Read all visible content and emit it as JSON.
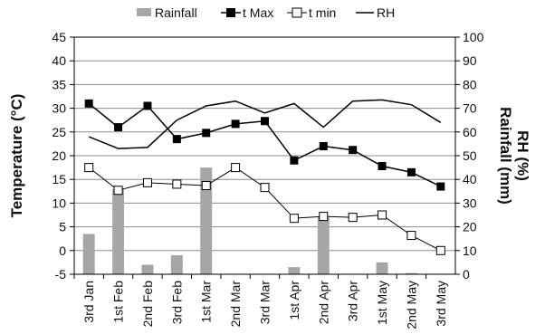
{
  "chart_data": {
    "type": "bar",
    "categories": [
      "3rd Jan",
      "1st Feb",
      "2nd Feb",
      "3rd Feb",
      "1st Mar",
      "2nd Mar",
      "3rd Mar",
      "1st Apr",
      "2nd Apr",
      "3rd Apr",
      "1st May",
      "2nd May",
      "3rd May"
    ],
    "ylabel_left": "Temperature (°C)",
    "ylabel_right_line1": "RH (%)",
    "ylabel_right_line2": "Rainfall (mm)",
    "ylim_left": [
      -5,
      45
    ],
    "ylim_right": [
      0,
      100
    ],
    "yticks_left": [
      "-5",
      "0",
      "5",
      "10",
      "15",
      "20",
      "25",
      "30",
      "35",
      "40",
      "45"
    ],
    "yticks_right": [
      "0",
      "10",
      "20",
      "30",
      "40",
      "50",
      "60",
      "70",
      "80",
      "90",
      "100"
    ],
    "grid": true,
    "legend_position": "top",
    "series": [
      {
        "name": "Rainfall",
        "type": "bar",
        "axis": "right",
        "color": "#a6a6a6",
        "values": [
          17,
          36,
          4,
          8,
          45,
          0,
          0,
          3,
          24,
          0,
          5,
          0.5,
          0
        ]
      },
      {
        "name": "t Max",
        "type": "line",
        "axis": "left",
        "marker": "filled-square",
        "color": "#000000",
        "values": [
          31,
          26,
          30.5,
          23.5,
          24.8,
          26.7,
          27.3,
          19,
          22,
          21.2,
          17.8,
          16.5,
          13.5
        ]
      },
      {
        "name": "t min",
        "type": "line",
        "axis": "left",
        "marker": "open-square",
        "color": "#000000",
        "values": [
          17.5,
          12.7,
          14.3,
          14,
          13.7,
          17.5,
          13.3,
          6.8,
          7.2,
          7,
          7.5,
          3.2,
          0
        ]
      },
      {
        "name": "RH",
        "type": "line",
        "axis": "right",
        "marker": "none",
        "color": "#000000",
        "values": [
          58,
          53,
          53.5,
          65,
          71,
          73,
          68,
          72,
          62,
          73,
          73.5,
          71.5,
          64
        ]
      }
    ]
  }
}
